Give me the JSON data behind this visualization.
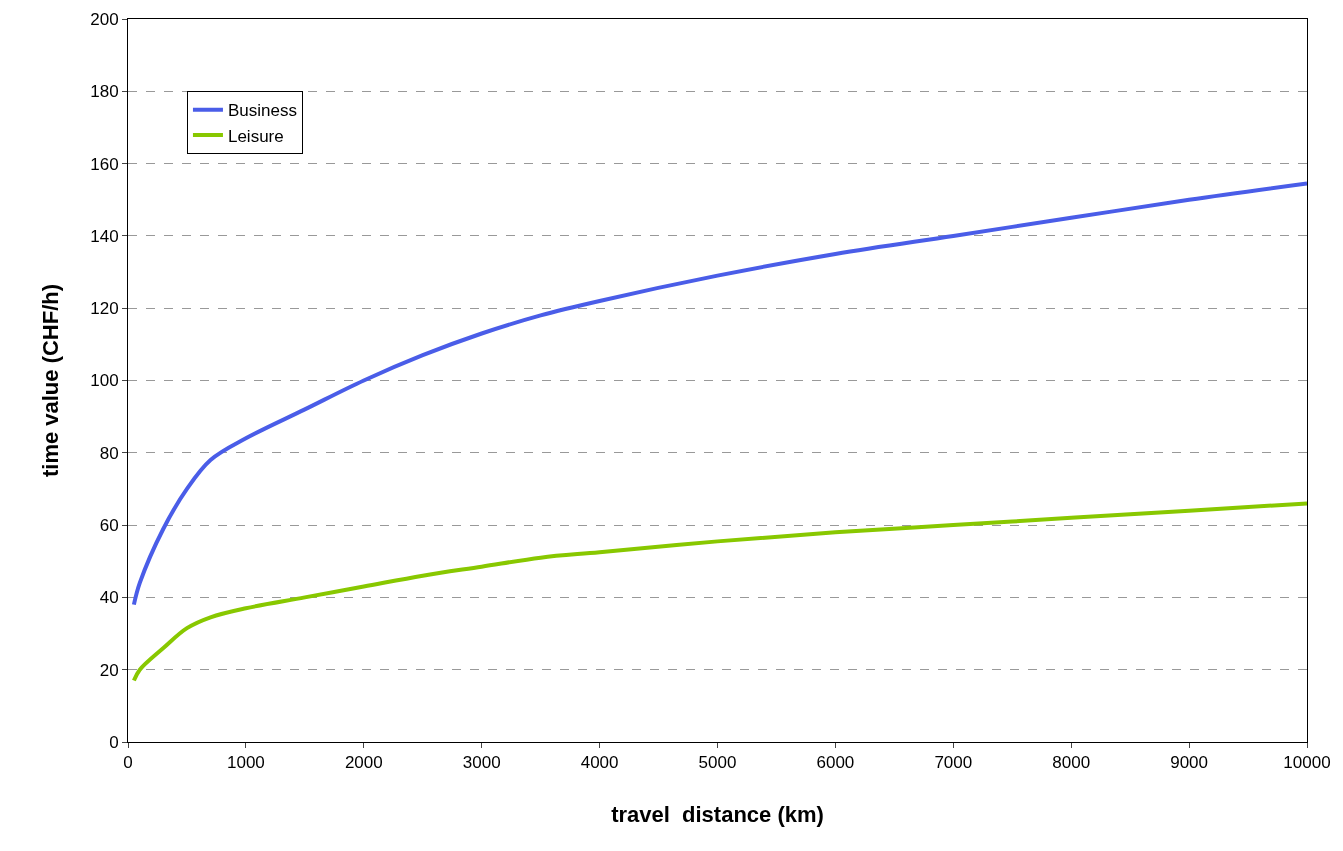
{
  "chart_data": {
    "type": "line",
    "xlabel": "travel  distance (km)",
    "ylabel": "time value (CHF/h)",
    "xlim": [
      0,
      10000
    ],
    "xticks": [
      0,
      1000,
      2000,
      3000,
      4000,
      5000,
      6000,
      7000,
      8000,
      9000,
      10000
    ],
    "ylim": [
      0,
      200
    ],
    "yticks": [
      0,
      20,
      40,
      60,
      80,
      100,
      120,
      140,
      160,
      180,
      200
    ],
    "grid": "y",
    "legend": "top left",
    "marker": "none",
    "line_style": "solid",
    "series": [
      {
        "name": "Business",
        "color": "#4a5de8",
        "x": [
          50,
          100,
          300,
          500,
          700,
          1000,
          1500,
          2000,
          2500,
          3000,
          3500,
          4000,
          5000,
          6000,
          7000,
          8000,
          9000,
          10000
        ],
        "values": [
          38,
          44,
          59,
          70,
          78,
          84,
          92,
          100,
          107,
          113,
          118,
          122,
          129,
          135,
          140,
          145,
          150,
          154.5
        ]
      },
      {
        "name": "Leisure",
        "color": "#88c800",
        "x": [
          50,
          100,
          300,
          500,
          700,
          1000,
          1500,
          2000,
          2500,
          3000,
          3500,
          4000,
          5000,
          6000,
          7000,
          8000,
          9000,
          10000
        ],
        "values": [
          17,
          20,
          26,
          31.5,
          34.5,
          37,
          40,
          43,
          46,
          48.5,
          51,
          52.5,
          55.5,
          58,
          60,
          62,
          64,
          66
        ]
      }
    ]
  }
}
